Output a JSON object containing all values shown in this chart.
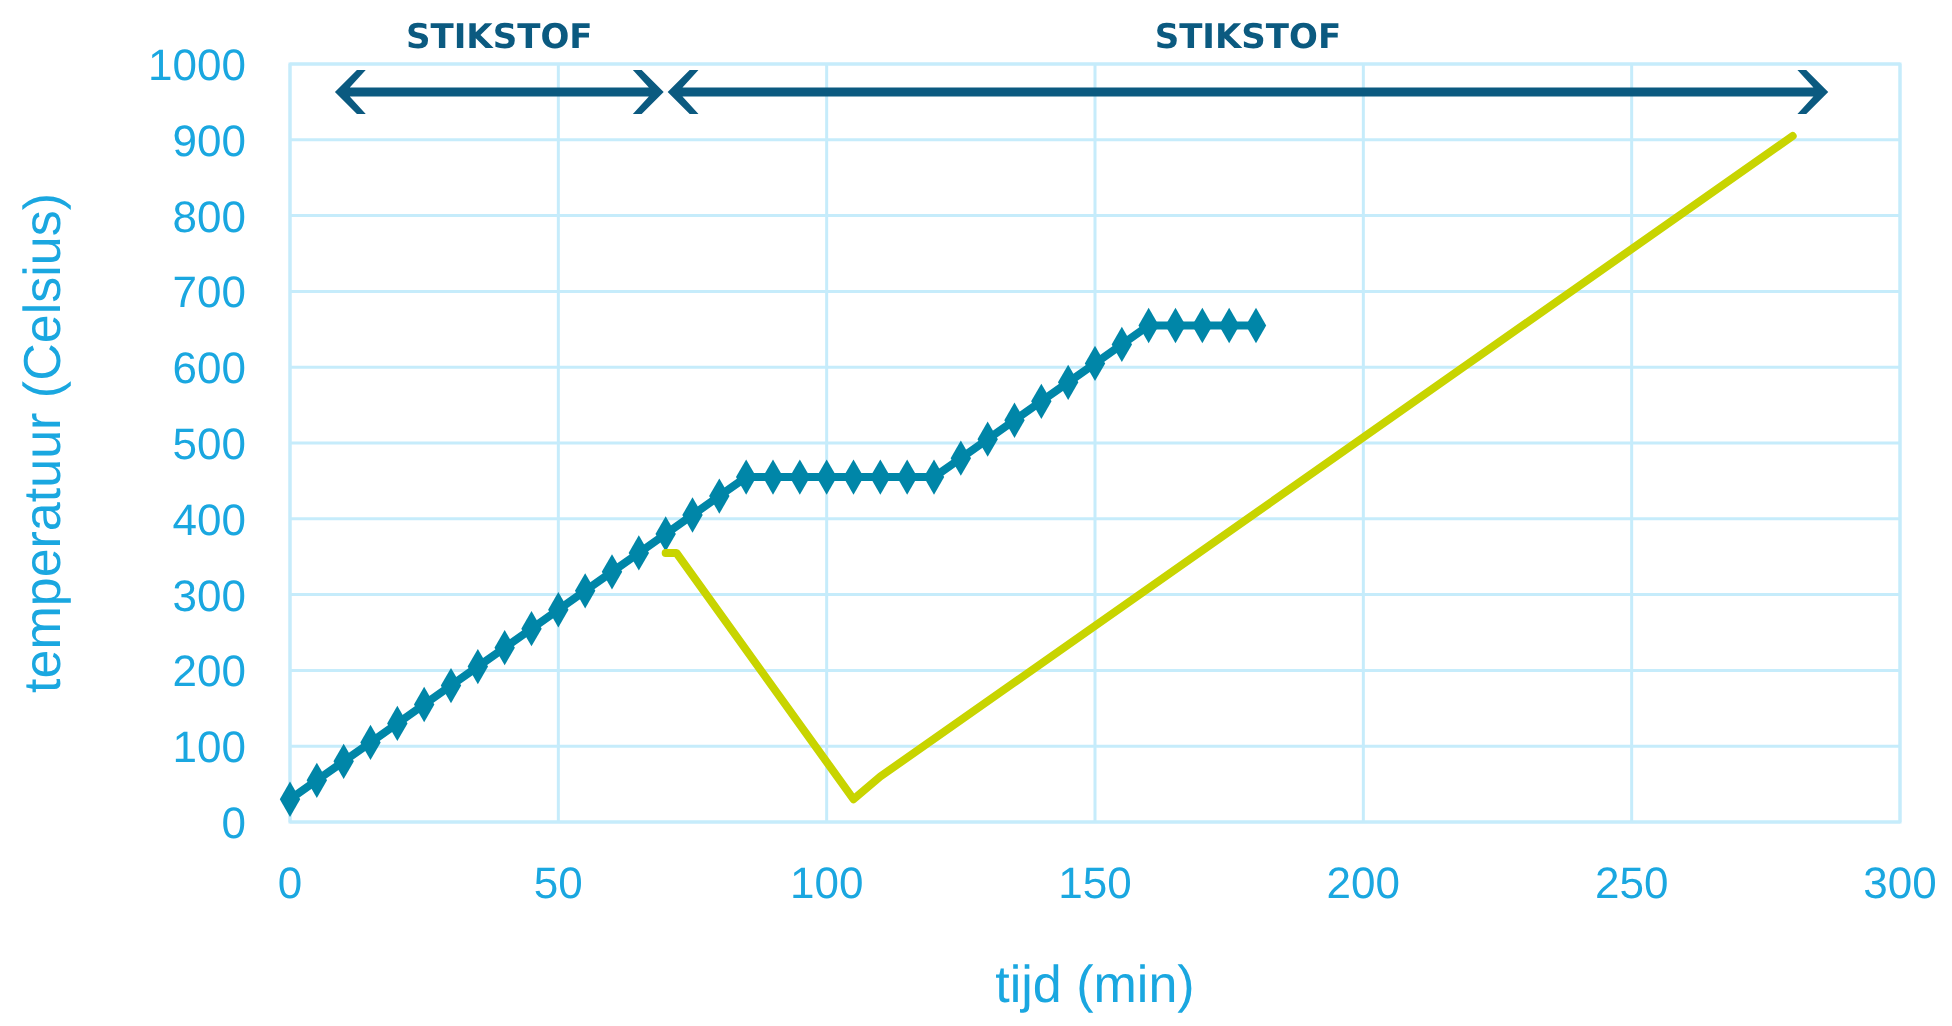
{
  "chart_data": {
    "type": "line",
    "xlabel": "tijd (min)",
    "ylabel": "temperatuur (Celsius)",
    "annotations": [
      "STIKSTOF",
      "STIKSTOF"
    ],
    "xlim": [
      0,
      300
    ],
    "xticks": [
      0,
      50,
      100,
      150,
      200,
      250,
      300
    ],
    "ylim": [
      0,
      1000
    ],
    "yticks": [
      0,
      100,
      200,
      300,
      400,
      500,
      600,
      700,
      800,
      900,
      1000
    ],
    "grid": true,
    "series": [
      {
        "color": "#0086a8",
        "marker": "diamond",
        "x": [
          0,
          5,
          10,
          15,
          20,
          25,
          30,
          35,
          40,
          45,
          50,
          55,
          60,
          65,
          70,
          75,
          80,
          85,
          90,
          95,
          100,
          105,
          110,
          115,
          120,
          125,
          130,
          135,
          140,
          145,
          150,
          155,
          160,
          165,
          170,
          175,
          180
        ],
        "values": [
          30,
          55,
          80,
          105,
          130,
          155,
          180,
          205,
          230,
          255,
          280,
          305,
          330,
          355,
          380,
          405,
          430,
          455,
          455,
          455,
          455,
          455,
          455,
          455,
          455,
          480,
          505,
          530,
          555,
          580,
          605,
          630,
          655,
          655,
          655,
          655,
          655
        ]
      },
      {
        "color": "#c8d400",
        "marker": "none",
        "x": [
          70,
          72,
          105,
          110,
          280
        ],
        "values": [
          355,
          355,
          30,
          60,
          905
        ]
      }
    ]
  }
}
